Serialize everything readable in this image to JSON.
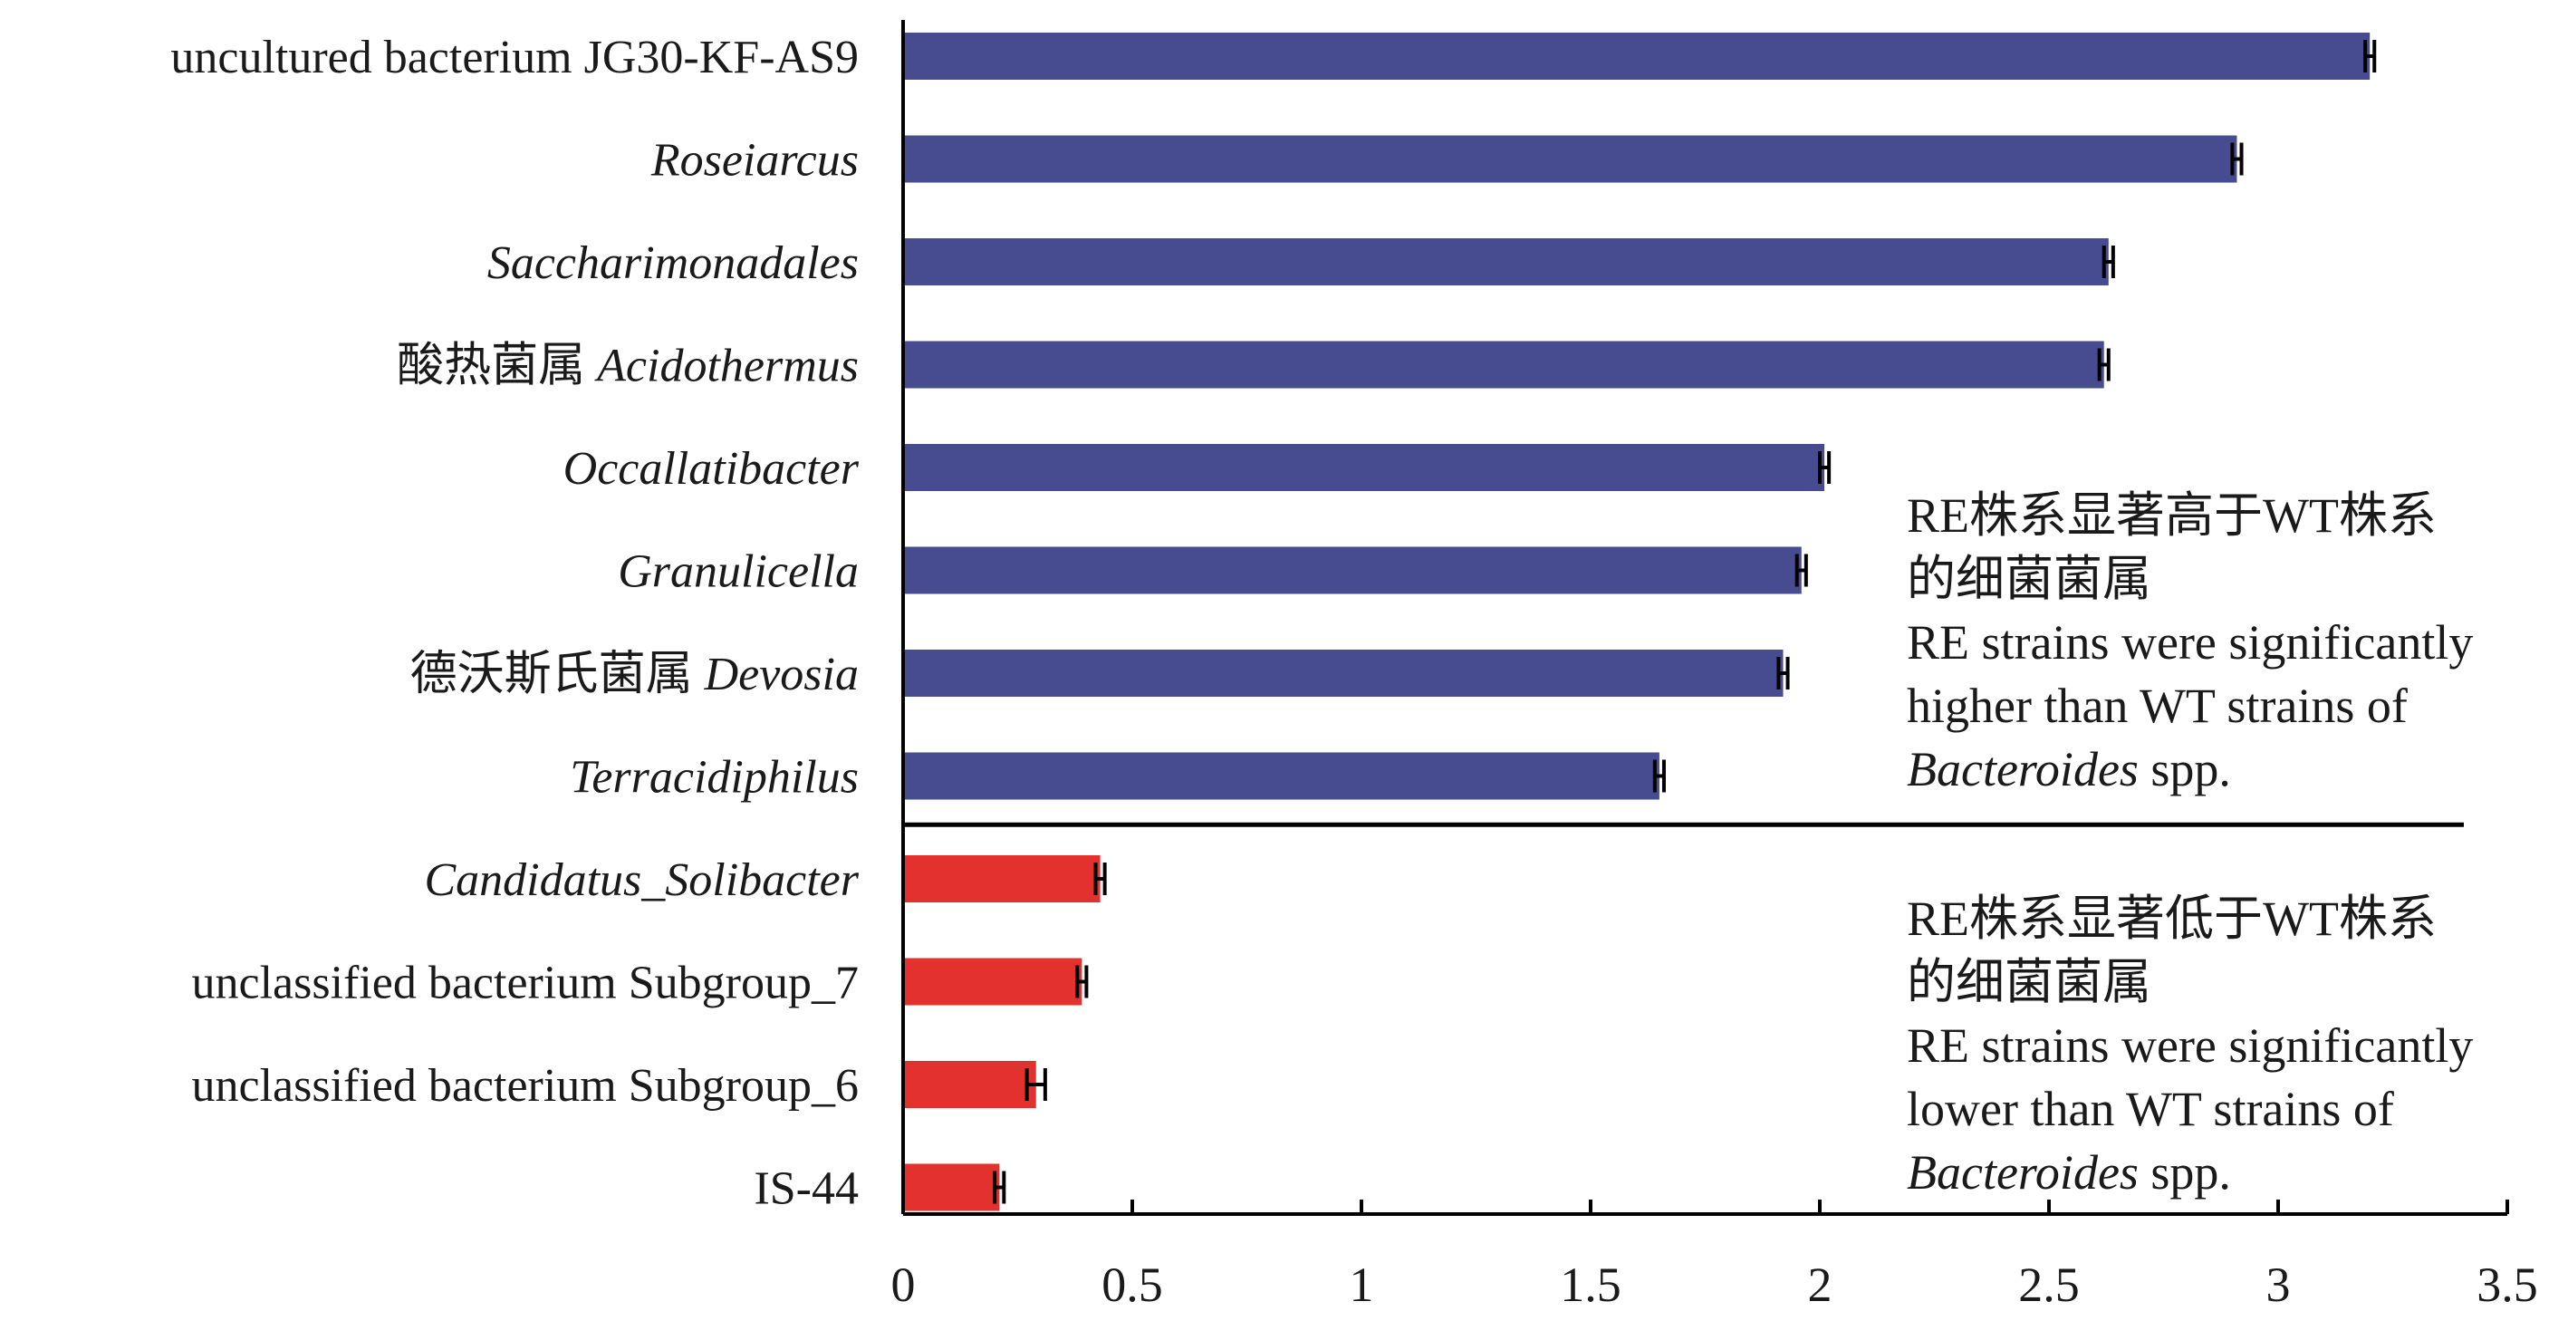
{
  "chart_data": {
    "type": "bar",
    "orientation": "horizontal",
    "categories": [
      {
        "plain": "uncultured bacterium JG30-KF-AS9",
        "italic": ""
      },
      {
        "plain": "",
        "italic": "Roseiarcus"
      },
      {
        "plain": "",
        "italic": "Saccharimonadales"
      },
      {
        "plain": "酸热菌属 ",
        "italic": "Acidothermus"
      },
      {
        "plain": "",
        "italic": "Occallatibacter"
      },
      {
        "plain": "",
        "italic": "Granulicella"
      },
      {
        "plain": "德沃斯氏菌属 ",
        "italic": "Devosia"
      },
      {
        "plain": "",
        "italic": "Terracidiphilus"
      },
      {
        "plain": "",
        "italic": "Candidatus_Solibacter"
      },
      {
        "plain": "unclassified bacterium Subgroup_7",
        "italic": ""
      },
      {
        "plain": "unclassified bacterium Subgroup_6",
        "italic": ""
      },
      {
        "plain": "IS-44",
        "italic": ""
      }
    ],
    "values": [
      3.2,
      2.91,
      2.63,
      2.62,
      2.01,
      1.96,
      1.92,
      1.65,
      0.43,
      0.39,
      0.29,
      0.21
    ],
    "errors": [
      0.01,
      0.01,
      0.01,
      0.01,
      0.01,
      0.01,
      0.01,
      0.01,
      0.01,
      0.01,
      0.02,
      0.01
    ],
    "groups": [
      {
        "name": "higher",
        "color": "#474b8f",
        "count": 8
      },
      {
        "name": "lower",
        "color": "#e3322d",
        "count": 4
      }
    ],
    "xlim": [
      0,
      3.5
    ],
    "xticks": [
      "0",
      "0.5",
      "1",
      "1.5",
      "2",
      "2.5",
      "3",
      "3.5"
    ],
    "xlabel": "",
    "ylabel": "",
    "title": "",
    "grid": false,
    "annotations": {
      "higher": {
        "lines": [
          [
            {
              "t": "RE株系显著高于WT株系",
              "i": false
            }
          ],
          [
            {
              "t": "的细菌菌属",
              "i": false
            }
          ],
          [
            {
              "t": "RE strains were significantly",
              "i": false
            }
          ],
          [
            {
              "t": "higher than WT strains of",
              "i": false
            }
          ],
          [
            {
              "t": "Bacteroides",
              "i": true
            },
            {
              "t": " spp.",
              "i": false
            }
          ]
        ]
      },
      "lower": {
        "lines": [
          [
            {
              "t": "RE株系显著低于WT株系",
              "i": false
            }
          ],
          [
            {
              "t": "的细菌菌属",
              "i": false
            }
          ],
          [
            {
              "t": "RE strains were significantly",
              "i": false
            }
          ],
          [
            {
              "t": "lower than WT strains of",
              "i": false
            }
          ],
          [
            {
              "t": "Bacteroides",
              "i": true
            },
            {
              "t": " spp.",
              "i": false
            }
          ]
        ]
      }
    }
  }
}
